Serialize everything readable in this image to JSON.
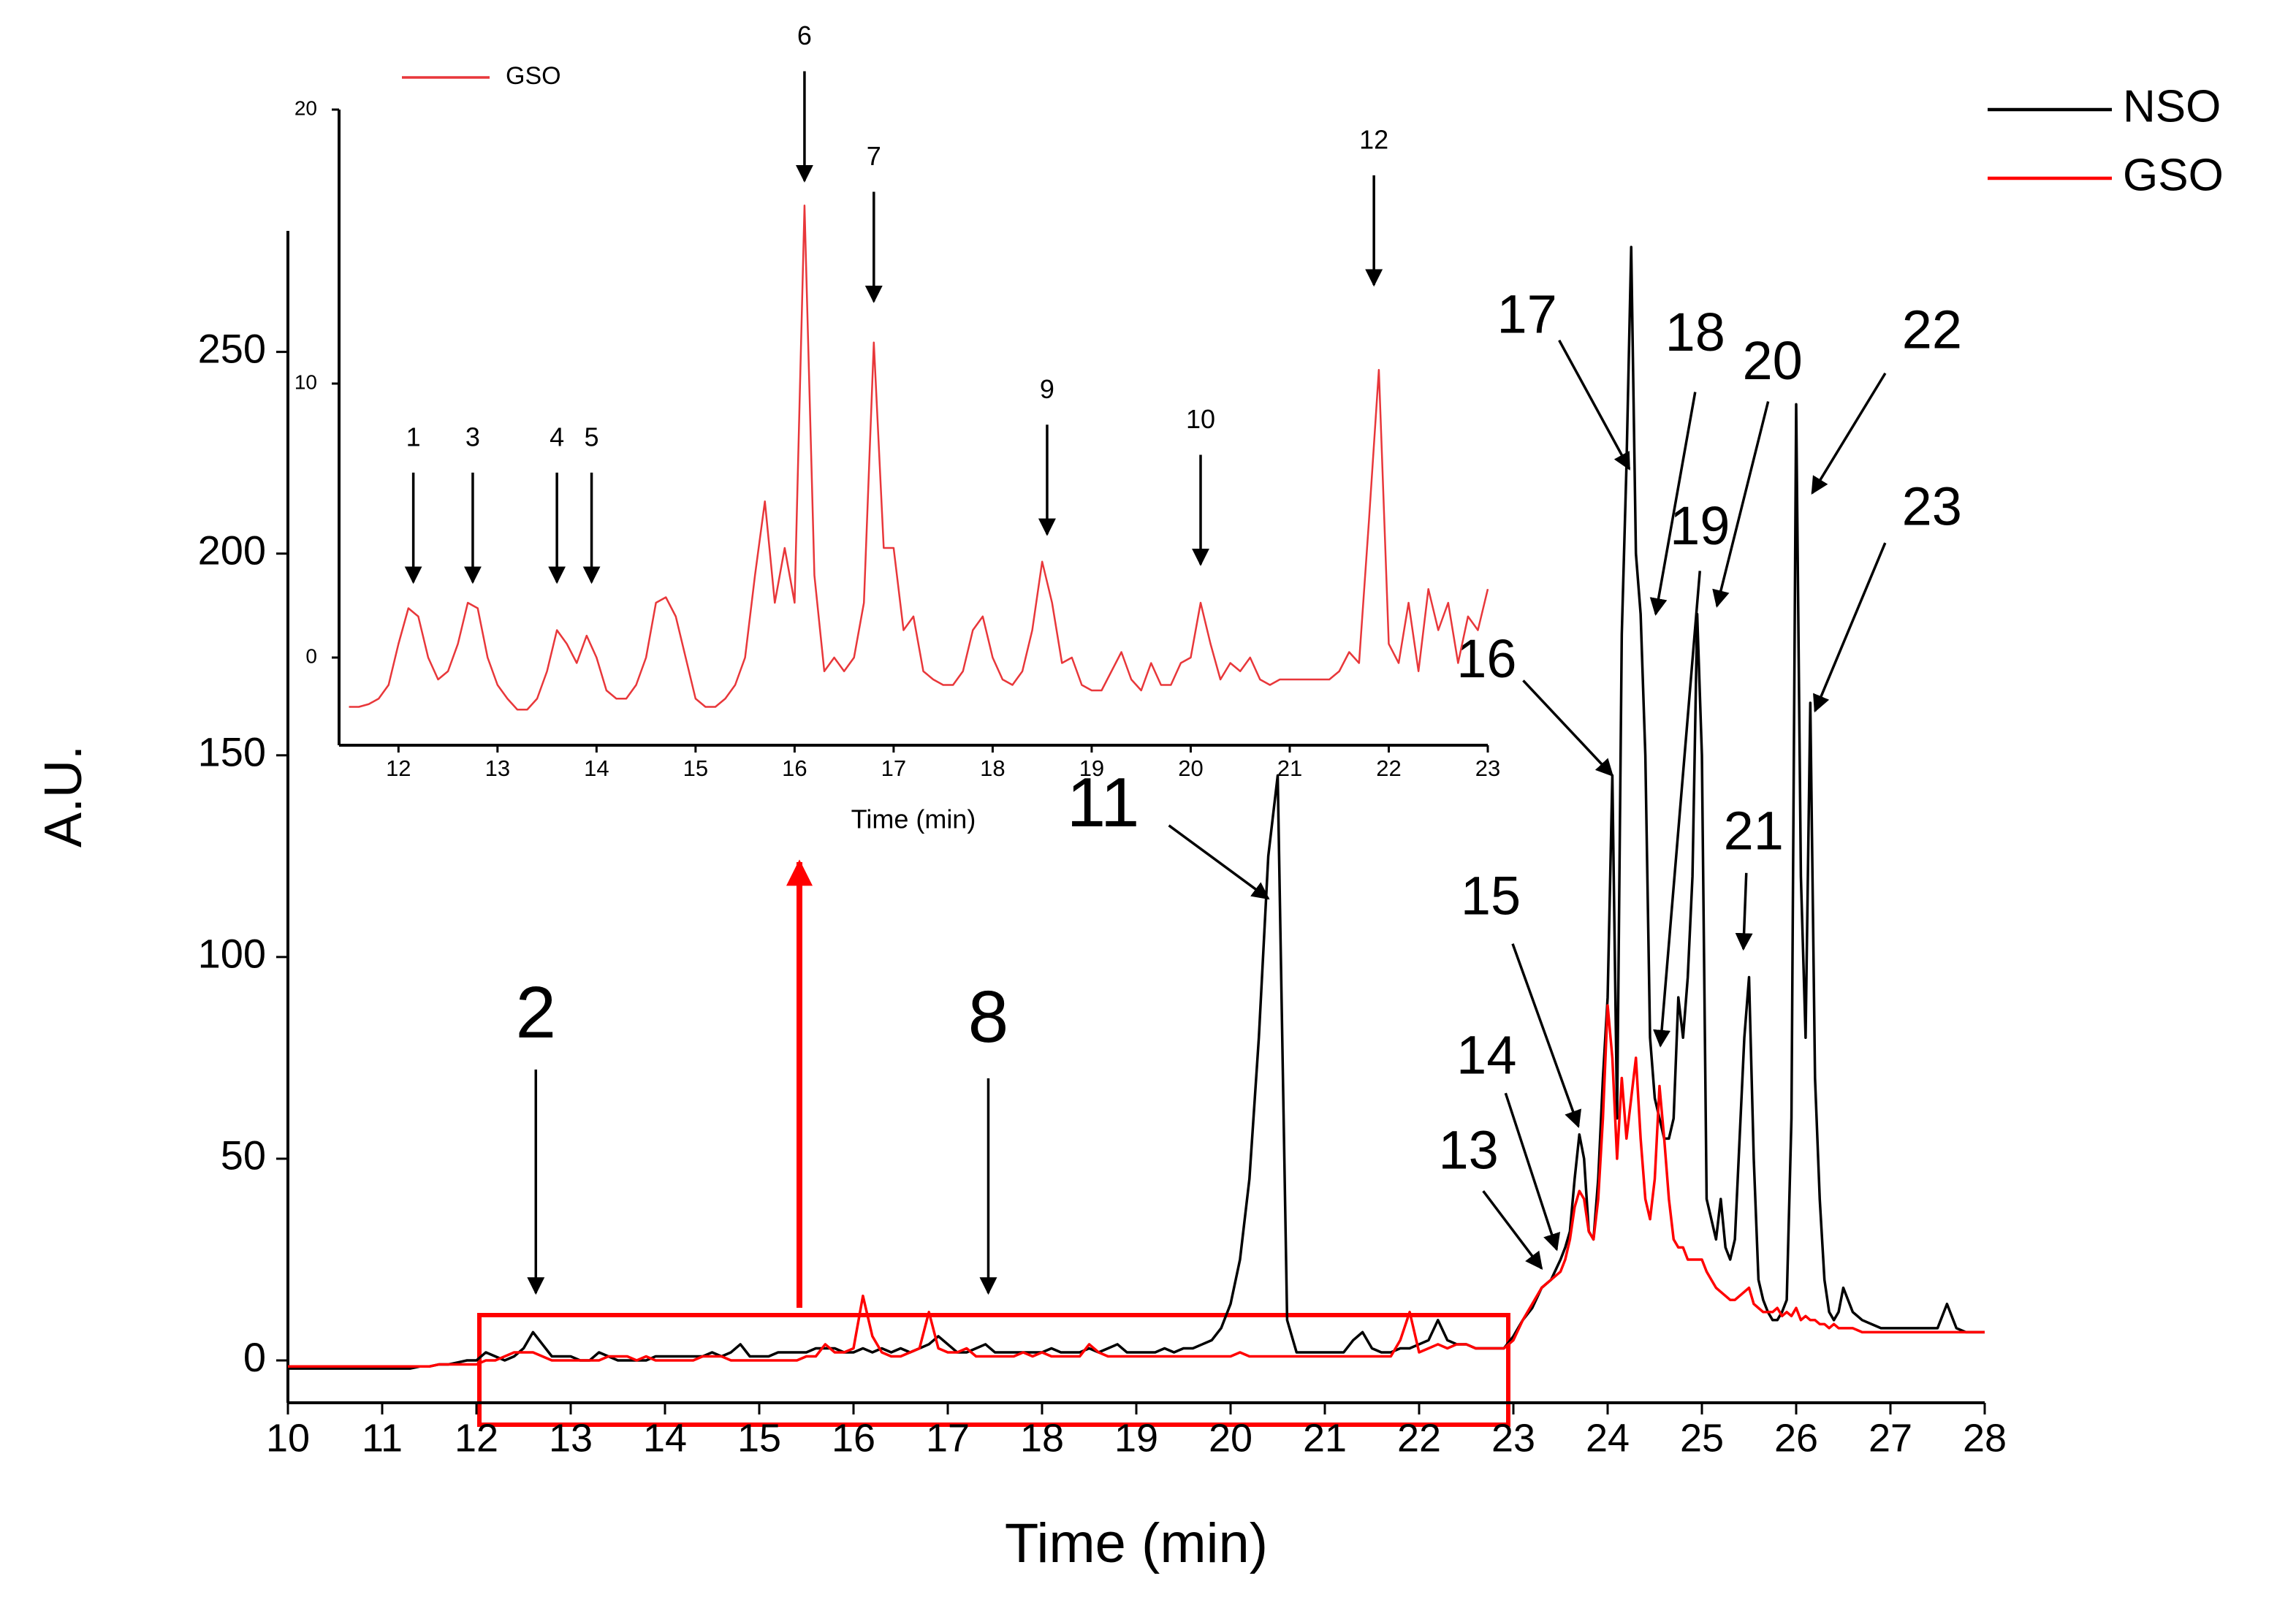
{
  "chart_data": [
    {
      "type": "line",
      "x_label": "Time (min)",
      "y_label": "A.U.",
      "xlim": [
        10,
        28
      ],
      "ylim": [
        -10.5,
        280
      ],
      "xticks": [
        10,
        11,
        12,
        13,
        14,
        15,
        16,
        17,
        18,
        19,
        20,
        21,
        22,
        23,
        24,
        25,
        26,
        27,
        28
      ],
      "yticks": [
        0,
        50,
        100,
        150,
        200,
        250
      ],
      "x": [
        10,
        10.1,
        10.2,
        10.3,
        10.4,
        10.5,
        10.6,
        10.7,
        10.8,
        10.9,
        11,
        11.1,
        11.2,
        11.3,
        11.4,
        11.5,
        11.6,
        11.7,
        11.8,
        11.9,
        12,
        12.1,
        12.2,
        12.3,
        12.4,
        12.5,
        12.6,
        12.7,
        12.8,
        12.9,
        13,
        13.1,
        13.2,
        13.3,
        13.4,
        13.5,
        13.6,
        13.7,
        13.8,
        13.9,
        14,
        14.1,
        14.2,
        14.3,
        14.4,
        14.5,
        14.6,
        14.7,
        14.8,
        14.9,
        15,
        15.1,
        15.2,
        15.3,
        15.4,
        15.5,
        15.6,
        15.7,
        15.8,
        15.9,
        16,
        16.1,
        16.2,
        16.3,
        16.4,
        16.5,
        16.6,
        16.7,
        16.8,
        16.9,
        17,
        17.1,
        17.2,
        17.3,
        17.4,
        17.5,
        17.6,
        17.7,
        17.8,
        17.9,
        18,
        18.1,
        18.2,
        18.3,
        18.4,
        18.5,
        18.6,
        18.7,
        18.8,
        18.9,
        19,
        19.1,
        19.2,
        19.3,
        19.4,
        19.5,
        19.6,
        19.7,
        19.8,
        19.9,
        20,
        20.1,
        20.2,
        20.3,
        20.4,
        20.5,
        20.6,
        20.7,
        20.8,
        20.9,
        21,
        21.1,
        21.2,
        21.3,
        21.4,
        21.5,
        21.6,
        21.7,
        21.8,
        21.9,
        22,
        22.1,
        22.2,
        22.3,
        22.4,
        22.5,
        22.6,
        22.7,
        22.8,
        22.9,
        23,
        23.1,
        23.2,
        23.3,
        23.4,
        23.5,
        23.55,
        23.6,
        23.65,
        23.7,
        23.75,
        23.8,
        23.85,
        23.9,
        23.95,
        24,
        24.05,
        24.1,
        24.15,
        24.2,
        24.25,
        24.3,
        24.35,
        24.4,
        24.45,
        24.5,
        24.55,
        24.6,
        24.65,
        24.7,
        24.75,
        24.8,
        24.85,
        24.9,
        24.95,
        25,
        25.05,
        25.1,
        25.15,
        25.2,
        25.25,
        25.3,
        25.35,
        25.4,
        25.45,
        25.5,
        25.55,
        25.6,
        25.65,
        25.7,
        25.75,
        25.8,
        25.85,
        25.9,
        25.95,
        26,
        26.05,
        26.1,
        26.15,
        26.2,
        26.25,
        26.3,
        26.35,
        26.4,
        26.45,
        26.5,
        26.6,
        26.7,
        26.8,
        26.9,
        27,
        27.1,
        27.2,
        27.3,
        27.4,
        27.5,
        27.6,
        27.7,
        27.8,
        27.9,
        28
      ],
      "series": [
        {
          "name": "NSO",
          "color": "#000000",
          "values": [
            -2,
            -2,
            -2,
            -2,
            -2,
            -2,
            -2,
            -2,
            -2,
            -2,
            -2,
            -2,
            -2,
            -2,
            -1.5,
            -1.5,
            -1,
            -1,
            -0.5,
            0,
            0,
            2,
            1,
            0,
            1,
            3,
            7,
            4,
            1,
            1,
            1,
            0,
            0,
            2,
            1,
            0,
            0,
            0,
            0,
            1,
            1,
            1,
            1,
            1,
            1,
            2,
            1,
            2,
            4,
            1,
            1,
            1,
            2,
            2,
            2,
            2,
            3,
            3,
            3,
            2,
            2,
            3,
            2,
            3,
            2,
            3,
            2,
            3,
            4,
            6,
            4,
            2,
            2,
            3,
            4,
            2,
            2,
            2,
            2,
            2,
            2,
            3,
            2,
            2,
            2,
            3,
            2,
            3,
            4,
            2,
            2,
            2,
            2,
            3,
            2,
            3,
            3,
            4,
            5,
            8,
            14,
            25,
            45,
            80,
            125,
            145,
            10,
            2,
            2,
            2,
            2,
            2,
            2,
            5,
            7,
            3,
            2,
            2,
            3,
            3,
            4,
            5,
            10,
            5,
            4,
            4,
            3,
            3,
            3,
            3,
            6,
            10,
            13,
            18,
            20,
            25,
            28,
            32,
            45,
            56,
            50,
            32,
            30,
            45,
            70,
            90,
            145,
            60,
            180,
            222,
            276,
            200,
            185,
            150,
            80,
            65,
            60,
            55,
            55,
            60,
            90,
            80,
            95,
            120,
            185,
            150,
            40,
            35,
            30,
            40,
            28,
            25,
            30,
            55,
            80,
            95,
            50,
            20,
            15,
            12,
            10,
            10,
            12,
            15,
            60,
            237,
            120,
            80,
            163,
            70,
            40,
            20,
            12,
            10,
            12,
            18,
            12,
            10,
            9,
            8,
            8,
            8,
            8,
            8,
            8,
            8,
            14,
            8,
            7,
            7,
            7
          ]
        },
        {
          "name": "GSO",
          "color": "#ff0000",
          "values": [
            -1.5,
            -1.5,
            -1.5,
            -1.5,
            -1.5,
            -1.5,
            -1.5,
            -1.5,
            -1.5,
            -1.5,
            -1.5,
            -1.5,
            -1.5,
            -1.5,
            -1.5,
            -1.5,
            -1,
            -1,
            -1,
            -1,
            -1,
            0,
            0,
            1,
            2,
            2,
            2,
            1,
            0,
            0,
            0,
            0,
            0,
            0,
            1,
            1,
            1,
            0,
            1,
            0,
            0,
            0,
            0,
            0,
            1,
            1,
            1,
            0,
            0,
            0,
            0,
            0,
            0,
            0,
            0,
            1,
            1,
            4,
            2,
            2,
            3,
            16,
            6,
            2,
            1,
            1,
            2,
            3,
            12,
            3,
            2,
            2,
            3,
            1,
            1,
            1,
            1,
            1,
            2,
            1,
            2,
            1,
            1,
            1,
            1,
            4,
            2,
            1,
            1,
            1,
            1,
            1,
            1,
            1,
            1,
            1,
            1,
            1,
            1,
            1,
            1,
            2,
            1,
            1,
            1,
            1,
            1,
            1,
            1,
            1,
            1,
            1,
            1,
            1,
            1,
            1,
            1,
            1,
            5,
            12,
            2,
            3,
            4,
            3,
            4,
            4,
            3,
            3,
            3,
            3,
            5,
            10,
            14,
            18,
            20,
            22,
            25,
            30,
            38,
            42,
            40,
            32,
            30,
            40,
            60,
            88,
            75,
            50,
            70,
            55,
            65,
            75,
            55,
            40,
            35,
            45,
            68,
            55,
            40,
            30,
            28,
            28,
            25,
            25,
            25,
            25,
            22,
            20,
            18,
            17,
            16,
            15,
            15,
            16,
            17,
            18,
            14,
            13,
            12,
            12,
            12,
            13,
            11,
            12,
            11,
            13,
            10,
            11,
            10,
            10,
            9,
            9,
            8,
            9,
            8,
            8,
            8,
            7,
            7,
            7,
            7,
            7,
            7,
            7,
            7,
            7,
            7,
            7,
            7,
            7,
            7
          ]
        }
      ],
      "annotations": [
        {
          "label": "2",
          "x": 12.63,
          "y": 16.7
        },
        {
          "label": "8",
          "x": 17.43,
          "y": 16.7
        },
        {
          "label": "11",
          "x": 20.4,
          "y": 114.5
        },
        {
          "label": "13",
          "x": 23.3,
          "y": 22.8
        },
        {
          "label": "14",
          "x": 23.46,
          "y": 27.5
        },
        {
          "label": "15",
          "x": 23.69,
          "y": 58
        },
        {
          "label": "16",
          "x": 24.05,
          "y": 145
        },
        {
          "label": "17",
          "x": 24.23,
          "y": 221
        },
        {
          "label": "18",
          "x": 24.51,
          "y": 185
        },
        {
          "label": "19",
          "x": 24.56,
          "y": 78
        },
        {
          "label": "20",
          "x": 25.16,
          "y": 187
        },
        {
          "label": "21",
          "x": 25.44,
          "y": 102
        },
        {
          "label": "22",
          "x": 26.17,
          "y": 215
        },
        {
          "label": "23",
          "x": 26.2,
          "y": 161
        }
      ]
    },
    {
      "type": "line",
      "x_label": "Time (min)",
      "xlim": [
        11.4,
        23
      ],
      "ylim": [
        -3.2,
        20
      ],
      "xticks": [
        12,
        13,
        14,
        15,
        16,
        17,
        18,
        19,
        20,
        21,
        22,
        23
      ],
      "yticks": [
        0,
        10,
        20
      ],
      "x": [
        11.5,
        11.6,
        11.7,
        11.8,
        11.9,
        12,
        12.1,
        12.2,
        12.3,
        12.4,
        12.5,
        12.6,
        12.7,
        12.8,
        12.9,
        13,
        13.1,
        13.2,
        13.3,
        13.4,
        13.5,
        13.6,
        13.7,
        13.8,
        13.9,
        14,
        14.1,
        14.2,
        14.3,
        14.4,
        14.5,
        14.6,
        14.7,
        14.8,
        14.9,
        15,
        15.1,
        15.2,
        15.3,
        15.4,
        15.5,
        15.6,
        15.7,
        15.8,
        15.9,
        16,
        16.1,
        16.2,
        16.3,
        16.4,
        16.5,
        16.6,
        16.7,
        16.8,
        16.9,
        17,
        17.1,
        17.2,
        17.3,
        17.4,
        17.5,
        17.6,
        17.7,
        17.8,
        17.9,
        18,
        18.1,
        18.2,
        18.3,
        18.4,
        18.5,
        18.6,
        18.7,
        18.8,
        18.9,
        19,
        19.1,
        19.2,
        19.3,
        19.4,
        19.5,
        19.6,
        19.7,
        19.8,
        19.9,
        20,
        20.1,
        20.2,
        20.3,
        20.4,
        20.5,
        20.6,
        20.7,
        20.8,
        20.9,
        21,
        21.1,
        21.2,
        21.3,
        21.4,
        21.5,
        21.6,
        21.7,
        21.8,
        21.9,
        22,
        22.1,
        22.2,
        22.3,
        22.4,
        22.5,
        22.6,
        22.7,
        22.8,
        22.9,
        23
      ],
      "series": [
        {
          "name": "GSO",
          "color": "#e8373a",
          "values": [
            -1.8,
            -1.8,
            -1.7,
            -1.5,
            -1,
            0.5,
            1.8,
            1.5,
            0,
            -0.8,
            -0.5,
            0.5,
            2,
            1.8,
            0,
            -1,
            -1.5,
            -1.9,
            -1.9,
            -1.5,
            -0.5,
            1,
            0.5,
            -0.2,
            0.8,
            0,
            -1.2,
            -1.5,
            -1.5,
            -1,
            0,
            2,
            2.2,
            1.5,
            0,
            -1.5,
            -1.8,
            -1.8,
            -1.5,
            -1,
            0,
            3,
            5.7,
            2,
            4,
            2,
            16.5,
            3,
            -0.5,
            0,
            -0.5,
            0,
            2,
            11.5,
            4,
            4,
            1,
            1.5,
            -0.5,
            -0.8,
            -1,
            -1,
            -0.5,
            1,
            1.5,
            0,
            -0.8,
            -1,
            -0.5,
            1,
            3.5,
            2,
            -0.2,
            0,
            -1,
            -1.2,
            -1.2,
            -0.5,
            0.2,
            -0.8,
            -1.2,
            -0.2,
            -1,
            -1,
            -0.2,
            0,
            2,
            0.5,
            -0.8,
            -0.2,
            -0.5,
            0,
            -0.8,
            -1,
            -0.8,
            -0.8,
            -0.8,
            -0.8,
            -0.8,
            -0.8,
            -0.5,
            0.2,
            -0.2,
            5,
            10.5,
            0.5,
            -0.2,
            2,
            -0.5,
            2.5,
            1,
            2,
            -0.2,
            1.5,
            1,
            2.5
          ]
        }
      ],
      "annotations": [
        {
          "label": "1",
          "x": 12.15,
          "y": 2.75
        },
        {
          "label": "3",
          "x": 12.75,
          "y": 2.75
        },
        {
          "label": "4",
          "x": 13.6,
          "y": 2.75
        },
        {
          "label": "5",
          "x": 13.95,
          "y": 2.75
        },
        {
          "label": "6",
          "x": 16.1,
          "y": 17.4
        },
        {
          "label": "7",
          "x": 16.8,
          "y": 13
        },
        {
          "label": "9",
          "x": 18.55,
          "y": 4.5
        },
        {
          "label": "10",
          "x": 20.1,
          "y": 3.4
        },
        {
          "label": "12",
          "x": 21.85,
          "y": 13.6
        }
      ]
    }
  ]
}
